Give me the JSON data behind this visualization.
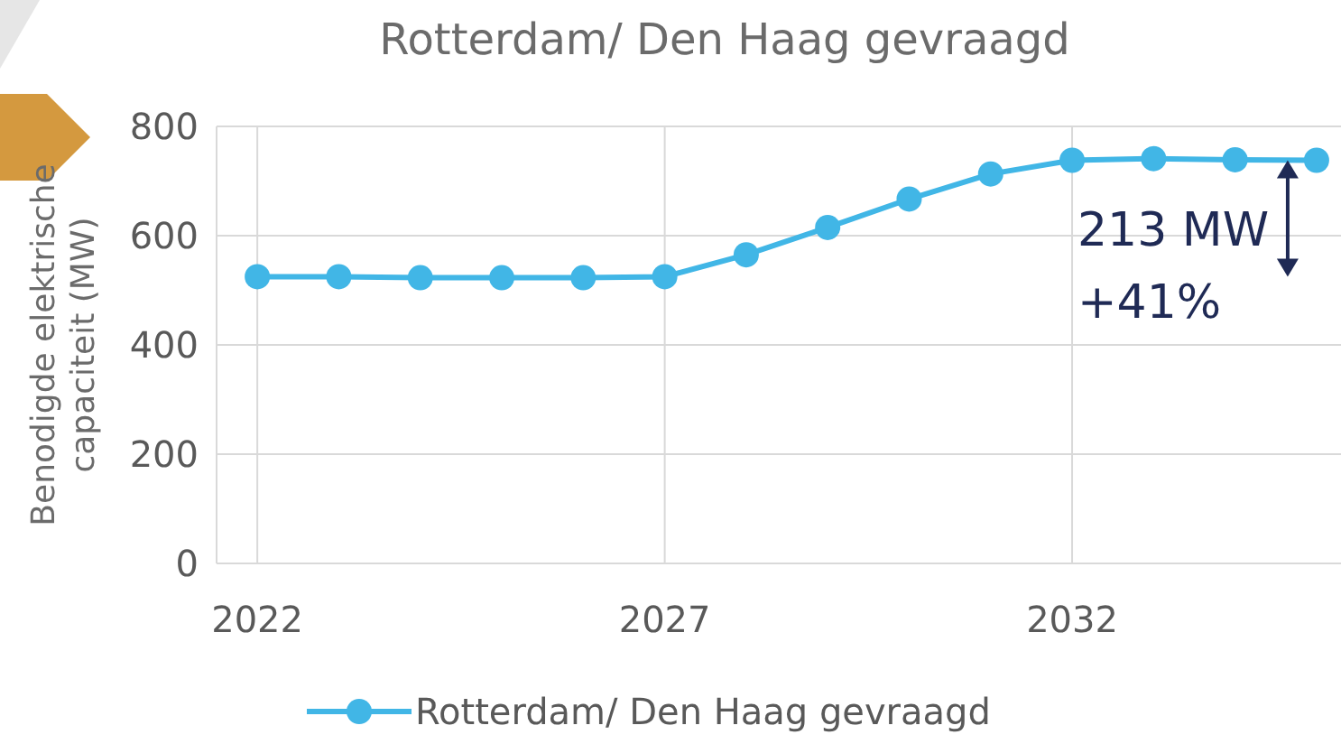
{
  "chart_data": {
    "type": "line",
    "title": "Rotterdam/ Den Haag gevraagd",
    "ylabel": "Benodigde elektrische capaciteit (MW)",
    "x": [
      2022,
      2023,
      2024,
      2025,
      2026,
      2027,
      2028,
      2029,
      2030,
      2031,
      2032,
      2033,
      2034,
      2035
    ],
    "series": [
      {
        "name": "Rotterdam/ Den Haag gevraagd",
        "color": "#41b6e6",
        "values": [
          525,
          525,
          523,
          523,
          523,
          525,
          565,
          615,
          667,
          713,
          738,
          741,
          739,
          738
        ]
      }
    ],
    "xlim": [
      2021.5,
      2035.3
    ],
    "xticks": [
      2022,
      2027,
      2032
    ],
    "ylim": [
      0,
      800
    ],
    "yticks": [
      0,
      200,
      400,
      600,
      800
    ],
    "annotations": [
      "213 MW\n+41%"
    ],
    "grid": true,
    "legend": "bottom",
    "marker": "circle",
    "line_style": "solid"
  }
}
